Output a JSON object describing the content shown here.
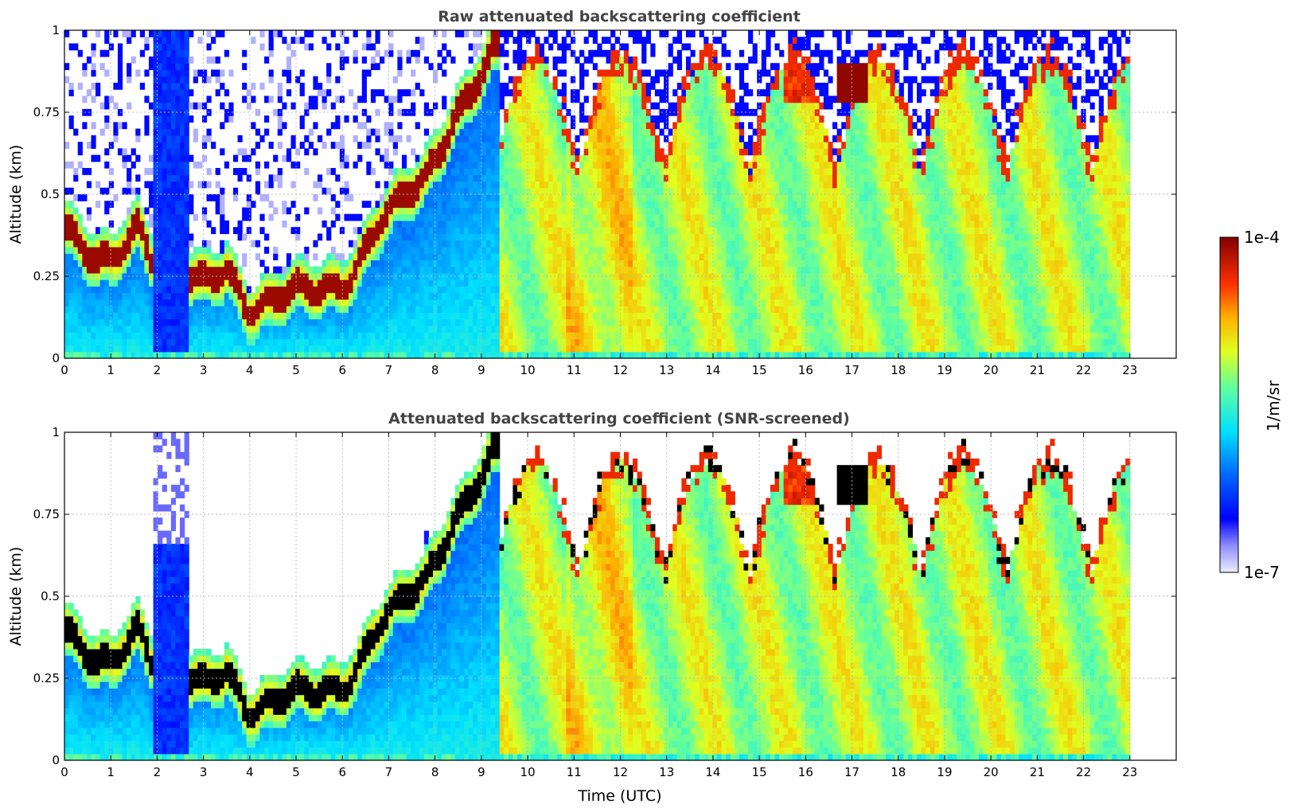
{
  "chart_data": [
    {
      "type": "heatmap",
      "title": "Raw attenuated backscattering coefficient",
      "xlabel": "",
      "ylabel": "Altitude (km)",
      "x_ticks": [
        "0",
        "1",
        "2",
        "3",
        "4",
        "5",
        "6",
        "7",
        "8",
        "9",
        "10",
        "11",
        "12",
        "13",
        "14",
        "15",
        "16",
        "17",
        "18",
        "19",
        "20",
        "21",
        "22",
        "23"
      ],
      "y_ticks": [
        "0",
        "0.25",
        "0.5",
        "0.75",
        "1"
      ],
      "xlim": [
        0,
        24
      ],
      "ylim": [
        0,
        1
      ],
      "grid": true,
      "data_end_hour": 23,
      "colormap": "jet",
      "screened": false
    },
    {
      "type": "heatmap",
      "title": "Attenuated backscattering coefficient (SNR-screened)",
      "xlabel": "Time (UTC)",
      "ylabel": "Altitude (km)",
      "x_ticks": [
        "0",
        "1",
        "2",
        "3",
        "4",
        "5",
        "6",
        "7",
        "8",
        "9",
        "10",
        "11",
        "12",
        "13",
        "14",
        "15",
        "16",
        "17",
        "18",
        "19",
        "20",
        "21",
        "22",
        "23"
      ],
      "y_ticks": [
        "0",
        "0.25",
        "0.5",
        "0.75",
        "1"
      ],
      "xlim": [
        0,
        24
      ],
      "ylim": [
        0,
        1
      ],
      "grid": true,
      "data_end_hour": 23,
      "colormap": "jet",
      "screened": true
    }
  ],
  "colorbar": {
    "label": "1/m/sr",
    "max_label": "1e-4",
    "min_label": "1e-7",
    "range": [
      1e-07,
      0.0001
    ],
    "scale": "log"
  }
}
